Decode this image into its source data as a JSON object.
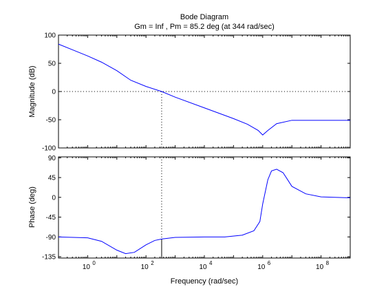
{
  "chart_data": {
    "type": "line",
    "title": "Bode Diagram",
    "subtitle": "Gm = Inf ,  Pm = 85.2 deg (at 344 rad/sec)",
    "xlabel": "Frequency  (rad/sec)",
    "xscale": "log",
    "xlim": [
      0.1,
      1000000000
    ],
    "x_ticks": [
      1,
      100,
      10000,
      1000000,
      100000000
    ],
    "x_tick_labels": [
      {
        "base": "10",
        "exp": "0"
      },
      {
        "base": "10",
        "exp": "2"
      },
      {
        "base": "10",
        "exp": "4"
      },
      {
        "base": "10",
        "exp": "6"
      },
      {
        "base": "10",
        "exp": "8"
      }
    ],
    "line_color": "#0000ff",
    "marker_color": "#000000",
    "crossover_frequency": 344,
    "magnitude": {
      "ylabel": "Magnitude (dB)",
      "ylim": [
        -100,
        100
      ],
      "y_ticks": [
        -100,
        -50,
        0,
        50,
        100
      ],
      "y_tick_labels": [
        "-100",
        "-50",
        "0",
        "50",
        "100"
      ],
      "zero_line_value": 0,
      "series": {
        "x": [
          0.1,
          0.3,
          1,
          3,
          10,
          30,
          100,
          344,
          1000,
          10000,
          100000,
          300000,
          700000,
          1000000,
          1500000,
          3000000,
          10000000,
          100000000,
          1000000000
        ],
        "y": [
          84,
          74,
          63,
          52,
          37,
          20,
          9,
          0,
          -10,
          -29,
          -48,
          -58,
          -69,
          -77,
          -69,
          -57,
          -51,
          -51,
          -51
        ]
      }
    },
    "phase": {
      "ylabel": "Phase (deg)",
      "ylim": [
        -138,
        92
      ],
      "y_ticks": [
        -135,
        -90,
        -45,
        0,
        45,
        90
      ],
      "y_tick_labels": [
        "-135",
        "-90",
        "-45",
        "0",
        "45",
        "90"
      ],
      "crossover_phase": -94.8,
      "series": {
        "x": [
          0.1,
          1,
          3,
          10,
          20,
          40,
          100,
          200,
          344,
          1000,
          10000,
          50000,
          200000,
          500000,
          800000,
          1000000,
          1500000,
          2000000,
          3000000,
          5000000,
          10000000,
          30000000,
          100000000,
          1000000000
        ],
        "y": [
          -90,
          -92,
          -100,
          -120,
          -128,
          -125,
          -108,
          -98,
          -94.8,
          -91,
          -90,
          -90,
          -86,
          -76,
          -55,
          -15,
          40,
          60,
          64,
          56,
          25,
          8,
          1,
          -1
        ]
      }
    }
  }
}
